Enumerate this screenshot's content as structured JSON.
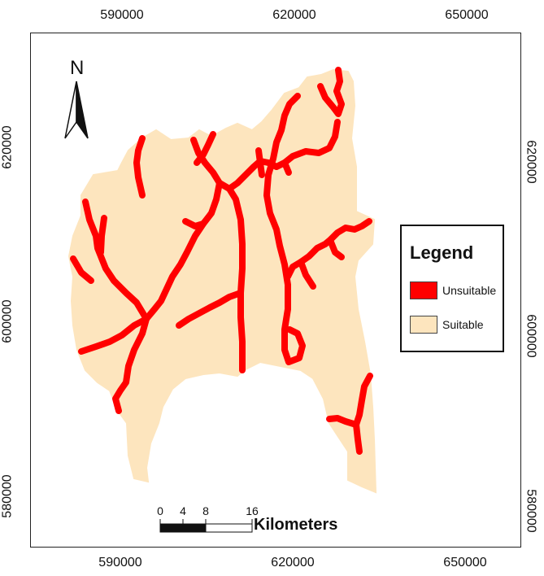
{
  "axes": {
    "top": [
      "590000",
      "620000",
      "650000"
    ],
    "bottom": [
      "590000",
      "620000",
      "650000"
    ],
    "left": [
      "620000",
      "600000",
      "580000"
    ],
    "right": [
      "620000",
      "600000",
      "580000"
    ]
  },
  "north_arrow": {
    "label": "N"
  },
  "legend": {
    "title": "Legend",
    "items": [
      {
        "label": "Unsuitable",
        "color": "#ff0000"
      },
      {
        "label": "Suitable",
        "color": "#fde5be"
      }
    ]
  },
  "scale_bar": {
    "ticks": [
      "0",
      "4",
      "8",
      "16"
    ],
    "unit": "Kilometers"
  },
  "colors": {
    "suitable_fill": "#fde5be",
    "unsuitable": "#ff0000"
  }
}
